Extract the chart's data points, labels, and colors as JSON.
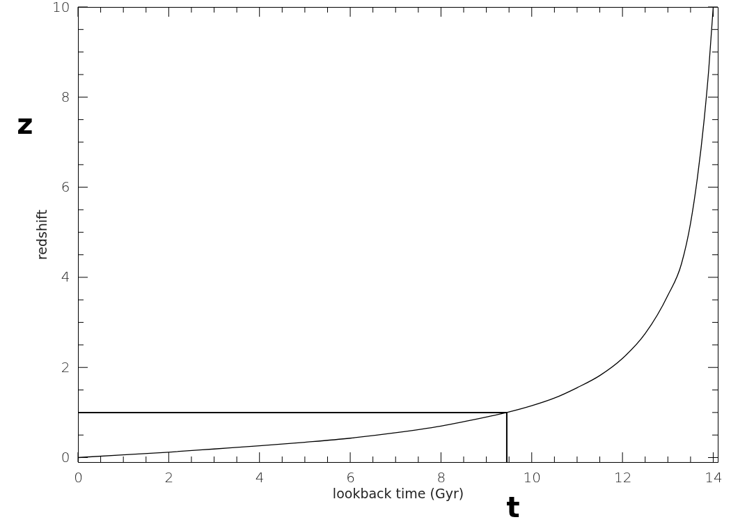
{
  "chart_data": {
    "type": "line",
    "xlabel": "lookback time (Gyr)",
    "ylabel": "redshift",
    "annotations": [
      "z",
      "t"
    ],
    "x": [
      0,
      1,
      2,
      3,
      4,
      5,
      6,
      7,
      8,
      9,
      9.45,
      10,
      10.5,
      11,
      11.5,
      12,
      12.5,
      13,
      13.3,
      13.5,
      13.65,
      13.8,
      13.9,
      14.0
    ],
    "series": [
      {
        "color": "#000000",
        "values": [
          0,
          0.06,
          0.12,
          0.19,
          0.26,
          0.34,
          0.43,
          0.55,
          0.7,
          0.9,
          1.0,
          1.15,
          1.32,
          1.55,
          1.82,
          2.2,
          2.75,
          3.6,
          4.3,
          5.2,
          6.2,
          7.5,
          8.6,
          10
        ]
      }
    ],
    "xlim": [
      0,
      14.1
    ],
    "ylim": [
      -0.1,
      10
    ],
    "xticks": [
      0,
      {
        "value": 0.5,
        "label": null
      },
      {
        "value": 1,
        "label": null
      },
      {
        "value": 1.5,
        "label": null
      },
      2,
      {
        "value": 2.5,
        "label": null
      },
      {
        "value": 3,
        "label": null
      },
      {
        "value": 3.5,
        "label": null
      },
      4,
      {
        "value": 4.5,
        "label": null
      },
      {
        "value": 5,
        "label": null
      },
      {
        "value": 5.5,
        "label": null
      },
      6,
      {
        "value": 6.5,
        "label": null
      },
      {
        "value": 7,
        "label": null
      },
      {
        "value": 7.5,
        "label": null
      },
      8,
      {
        "value": 8.5,
        "label": null
      },
      {
        "value": 9,
        "label": null
      },
      {
        "value": 9.5,
        "label": null
      },
      10,
      {
        "value": 10.5,
        "label": null
      },
      {
        "value": 11,
        "label": null
      },
      {
        "value": 11.5,
        "label": null
      },
      12,
      {
        "value": 12.5,
        "label": null
      },
      {
        "value": 13,
        "label": null
      },
      {
        "value": 13.5,
        "label": null
      },
      14
    ],
    "yticks": [
      0,
      {
        "value": 0.5,
        "label": null
      },
      {
        "value": 1,
        "label": null
      },
      {
        "value": 1.5,
        "label": null
      },
      2,
      {
        "value": 2.5,
        "label": null
      },
      {
        "value": 3,
        "label": null
      },
      {
        "value": 3.5,
        "label": null
      },
      4,
      {
        "value": 4.5,
        "label": null
      },
      {
        "value": 5,
        "label": null
      },
      {
        "value": 5.5,
        "label": null
      },
      6,
      {
        "value": 6.5,
        "label": null
      },
      {
        "value": 7,
        "label": null
      },
      {
        "value": 7.5,
        "label": null
      },
      8,
      {
        "value": 8.5,
        "label": null
      },
      {
        "value": 9,
        "label": null
      },
      {
        "value": 9.5,
        "label": null
      },
      10
    ],
    "ref_lines": [
      {
        "axis": "y",
        "value": 1.0
      },
      {
        "axis": "x",
        "value": 9.45
      }
    ],
    "grid": false,
    "legend": false,
    "marker": "none",
    "line_style": "solid"
  }
}
